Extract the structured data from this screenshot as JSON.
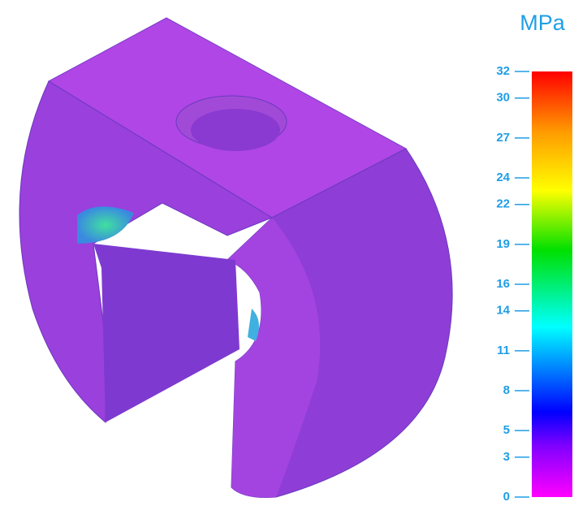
{
  "colorbar": {
    "unit": "MPa",
    "min": 0,
    "max": 32,
    "ticks": [
      0,
      3,
      5,
      8,
      11,
      14,
      16,
      19,
      22,
      24,
      27,
      30,
      32
    ]
  }
}
